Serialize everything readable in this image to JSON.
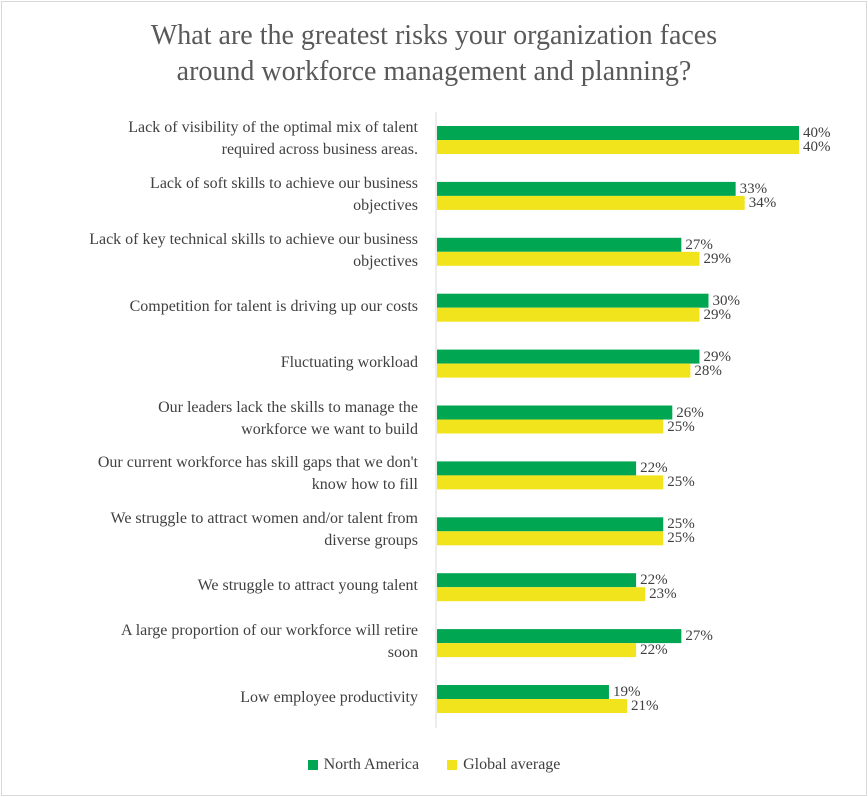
{
  "chart_data": {
    "type": "bar",
    "orientation": "horizontal",
    "title": "What are the greatest risks your organization faces around workforce management and planning?",
    "title_lines": [
      "What are the greatest risks your organization faces",
      "around workforce management and planning?"
    ],
    "categories": [
      [
        "Lack of visibility of the optimal mix of talent",
        "required across business areas."
      ],
      [
        "Lack of soft skills to achieve our business",
        "objectives"
      ],
      [
        "Lack of key technical skills to achieve our business",
        "objectives"
      ],
      [
        "Competition for talent is driving up our costs"
      ],
      [
        "Fluctuating workload"
      ],
      [
        "Our leaders lack the skills to manage the",
        "workforce we want to build"
      ],
      [
        "Our current workforce has skill gaps that we don't",
        "know how to fill"
      ],
      [
        "We struggle to attract women and/or talent from",
        "diverse groups"
      ],
      [
        "We struggle to attract young talent"
      ],
      [
        "A large proportion of our workforce will retire",
        "soon"
      ],
      [
        "Low employee productivity"
      ]
    ],
    "series": [
      {
        "name": "North America",
        "color": "#00a651",
        "values": [
          40,
          33,
          27,
          30,
          29,
          26,
          22,
          25,
          22,
          27,
          19
        ],
        "labels": [
          "40%",
          "33%",
          "27%",
          "30%",
          "29%",
          "26%",
          "22%",
          "25%",
          "22%",
          "27%",
          "19%"
        ]
      },
      {
        "name": "Global average",
        "color": "#f2e41c",
        "values": [
          40,
          34,
          29,
          29,
          28,
          25,
          25,
          25,
          23,
          22,
          21
        ],
        "labels": [
          "40%",
          "34%",
          "29%",
          "29%",
          "28%",
          "25%",
          "25%",
          "25%",
          "23%",
          "22%",
          "21%"
        ]
      }
    ],
    "unit": "%",
    "xlim": [
      0,
      40
    ],
    "grid": false,
    "axis_line": "left",
    "legend_position": "bottom"
  }
}
